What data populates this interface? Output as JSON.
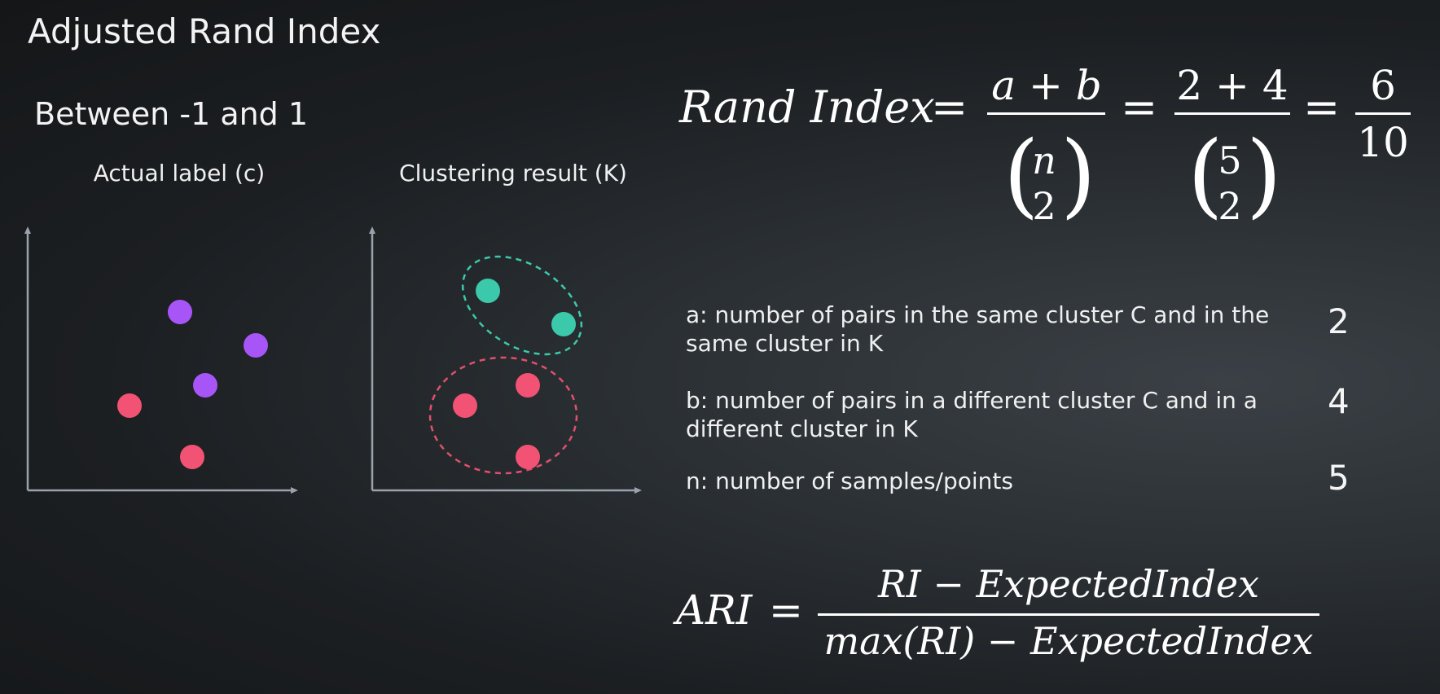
{
  "slide": {
    "title": "Adjusted Rand Index",
    "subtitle": "Between -1 and 1"
  },
  "plots": {
    "actual": {
      "caption": "Actual label (c)",
      "points": [
        {
          "group": "purple"
        },
        {
          "group": "purple"
        },
        {
          "group": "purple"
        },
        {
          "group": "pink"
        },
        {
          "group": "pink"
        }
      ]
    },
    "clustering": {
      "caption": "Clustering result (K)",
      "points": [
        {
          "group": "teal"
        },
        {
          "group": "teal"
        },
        {
          "group": "pink"
        },
        {
          "group": "pink"
        },
        {
          "group": "pink"
        }
      ]
    }
  },
  "colors": {
    "purple": "#a855f7",
    "pink": "#f25273",
    "teal": "#3cc9ab",
    "teal_dashed": "#3cc9ab",
    "pink_dashed": "#e0506c",
    "axis": "#9aa3ad"
  },
  "rand_formula": {
    "lhs": "Rand Index",
    "eq": "=",
    "frac1_num": "a + b",
    "binom1_top": "n",
    "binom1_bottom": "2",
    "frac2_num": "2 + 4",
    "binom2_top": "5",
    "binom2_bottom": "2",
    "frac3_num": "6",
    "frac3_den": "10"
  },
  "definitions": [
    {
      "text": "a: number of pairs in the same cluster C and in the same cluster in K",
      "value": "2"
    },
    {
      "text": "b: number of pairs in a different cluster C and in a different cluster in K",
      "value": "4"
    },
    {
      "text": "n: number of samples/points",
      "value": "5"
    }
  ],
  "ari_formula": {
    "lhs": "ARI",
    "eq": "=",
    "numerator": "RI − ExpectedIndex",
    "denominator": "max(RI) − ExpectedIndex"
  }
}
